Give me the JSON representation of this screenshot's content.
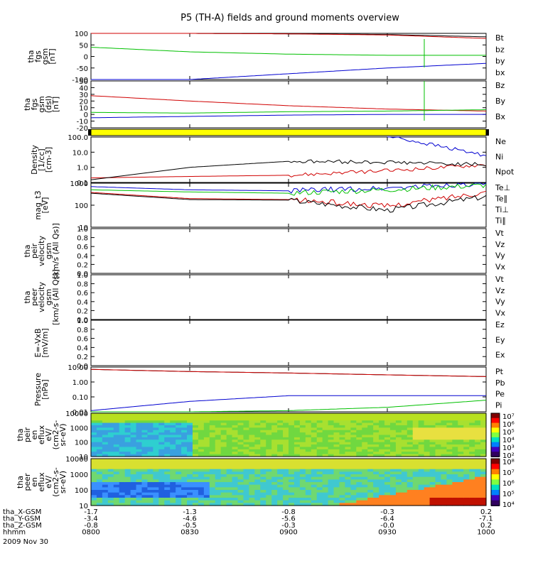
{
  "title": "P5 (TH-A) fields and ground moments overview",
  "panels": [
    {
      "id": "fgs_gsm",
      "ylabel": [
        "tha",
        "fgs",
        "gsm",
        "[nT]"
      ],
      "yticks": [
        "100",
        "50",
        "0",
        "-50",
        "-100"
      ],
      "legend": [
        {
          "t": "Bt",
          "c": "#000000"
        },
        {
          "t": "bz",
          "c": "#d00000"
        },
        {
          "t": "by",
          "c": "#00c000"
        },
        {
          "t": "bx",
          "c": "#0000d0"
        }
      ]
    },
    {
      "id": "fgs_dsl",
      "ylabel": [
        "tha",
        "fgs",
        "gsm",
        "(dsl)",
        "[nT]"
      ],
      "yticks": [
        "50",
        "40",
        "30",
        "20",
        "10",
        "0",
        "-10",
        "-20"
      ],
      "legend": [
        {
          "t": "Bz",
          "c": "#d00000"
        },
        {
          "t": "By",
          "c": "#00c000"
        },
        {
          "t": "Bx",
          "c": "#0000d0"
        }
      ]
    },
    {
      "id": "density",
      "ylabel": [
        "Density",
        "[1/cc]",
        "[cm-3]"
      ],
      "yticks": [
        "100.0",
        "10.0",
        "1.0",
        "0.1"
      ],
      "legend": [
        {
          "t": "Ne",
          "c": "#d00000"
        },
        {
          "t": "Ni",
          "c": "#000000"
        },
        {
          "t": "Npot",
          "c": "#0000d0"
        }
      ]
    },
    {
      "id": "temperature",
      "ylabel": [
        "mag_t3",
        "[eV]"
      ],
      "yticks": [
        "1000",
        "100",
        "10"
      ],
      "legend": [
        {
          "t": "Te⊥",
          "c": "#d00000"
        },
        {
          "t": "Te∥",
          "c": "#000000"
        },
        {
          "t": "Ti⊥",
          "c": "#0000d0"
        },
        {
          "t": "Ti∥",
          "c": "#00c000"
        }
      ]
    },
    {
      "id": "peir_vel",
      "ylabel": [
        "tha",
        "peir",
        "velocity",
        "gsm",
        "[km/s (All Qs)]"
      ],
      "yticks": [
        "1.0",
        "0.8",
        "0.6",
        "0.4",
        "0.2",
        "0.0"
      ],
      "legend": [
        {
          "t": "Vt",
          "c": "#000000"
        },
        {
          "t": "Vz",
          "c": "#d00000"
        },
        {
          "t": "Vy",
          "c": "#00c000"
        },
        {
          "t": "Vx",
          "c": "#0000d0"
        }
      ]
    },
    {
      "id": "peer_vel",
      "ylabel": [
        "tha",
        "peer",
        "velocity",
        "gsm",
        "[km/s (All Qs)]"
      ],
      "yticks": [
        "1.0",
        "0.8",
        "0.6",
        "0.4",
        "0.2",
        "0.0"
      ],
      "legend": [
        {
          "t": "Vt",
          "c": "#000000"
        },
        {
          "t": "Vz",
          "c": "#d00000"
        },
        {
          "t": "Vy",
          "c": "#00c000"
        },
        {
          "t": "Vx",
          "c": "#0000d0"
        }
      ]
    },
    {
      "id": "efield",
      "ylabel": [
        "E=-VxB",
        "[mV/m]"
      ],
      "yticks": [
        "1.0",
        "0.8",
        "0.6",
        "0.4",
        "0.2",
        "0.0"
      ],
      "legend": [
        {
          "t": "Ez",
          "c": "#d00000"
        },
        {
          "t": "Ey",
          "c": "#00c000"
        },
        {
          "t": "Ex",
          "c": "#0000d0"
        }
      ]
    },
    {
      "id": "pressure",
      "ylabel": [
        "Pressure",
        "[nPa]"
      ],
      "yticks": [
        "10.00",
        "1.00",
        "0.10",
        "0.01"
      ],
      "legend": [
        {
          "t": "Pt",
          "c": "#000000"
        },
        {
          "t": "Pb",
          "c": "#d00000"
        },
        {
          "t": "Pe",
          "c": "#00c000"
        },
        {
          "t": "Pi",
          "c": "#0000d0"
        }
      ]
    },
    {
      "id": "peir_en",
      "ylabel": [
        "tha",
        "peir",
        "en",
        "eflux",
        "eV/",
        "(cm2-s-",
        "sr-eV)"
      ],
      "yticks": [
        "10000",
        "1000",
        "100",
        "10"
      ],
      "cbar": [
        "10⁷",
        "10⁶",
        "10⁵",
        "10⁴",
        "10³",
        "10²"
      ]
    },
    {
      "id": "peer_en",
      "ylabel": [
        "tha",
        "peer",
        "en",
        "eflux",
        "eV/",
        "(cm2-s-",
        "sr-eV)"
      ],
      "yticks": [
        "10000",
        "1000",
        "100",
        "10"
      ],
      "cbar": [
        "10⁸",
        "10⁷",
        "10⁶",
        "10⁵",
        "10⁴"
      ]
    }
  ],
  "xaxis": {
    "rows": [
      {
        "label": "tha_X-GSM",
        "vals": [
          "-1.7",
          "-1.3",
          "-0.8",
          "-0.3",
          "0.2"
        ]
      },
      {
        "label": "tha_Y-GSM",
        "vals": [
          "-3.4",
          "-4.6",
          "-5.6",
          "-6.4",
          "-7.1"
        ]
      },
      {
        "label": "tha_Z-GSM",
        "vals": [
          "-0.8",
          "-0.5",
          "-0.3",
          "-0.0",
          "0.2"
        ]
      },
      {
        "label": "hhmm",
        "vals": [
          "0800",
          "0830",
          "0900",
          "0930",
          "1000"
        ]
      }
    ],
    "date": "2009 Nov 30"
  },
  "chart_data": {
    "type": "line",
    "x": [
      "0800",
      "0830",
      "0900",
      "0930",
      "1000"
    ],
    "time_range": [
      "0800",
      "1000"
    ],
    "panels": [
      {
        "name": "fgs gsm",
        "unit": "nT",
        "ylim": [
          -100,
          100
        ],
        "series": [
          {
            "name": "Bt",
            "values": [
              102,
              100,
              98,
              95,
              85
            ]
          },
          {
            "name": "bz",
            "values": [
              102,
              100,
              98,
              93,
              78
            ]
          },
          {
            "name": "by",
            "values": [
              40,
              20,
              10,
              5,
              5
            ]
          },
          {
            "name": "bx",
            "values": [
              -110,
              -100,
              -75,
              -50,
              -30
            ]
          }
        ]
      },
      {
        "name": "fgs dsl",
        "unit": "nT",
        "ylim": [
          -20,
          50
        ],
        "series": [
          {
            "name": "Bz",
            "values": [
              28,
              20,
              13,
              8,
              5
            ]
          },
          {
            "name": "By",
            "values": [
              3,
              2,
              4,
              5,
              7
            ]
          },
          {
            "name": "Bx",
            "values": [
              -5,
              -3,
              -1,
              0,
              0
            ]
          }
        ]
      },
      {
        "name": "Density",
        "unit": "cm-3",
        "ylim": [
          0.1,
          100
        ],
        "scale": "log",
        "series": [
          {
            "name": "Ne",
            "values": [
              0.2,
              0.25,
              0.3,
              0.6,
              1.5
            ]
          },
          {
            "name": "Ni",
            "values": [
              0.15,
              1.0,
              2.5,
              2.2,
              1.5
            ]
          },
          {
            "name": "Npot",
            "values": [
              null,
              null,
              null,
              120,
              6
            ]
          }
        ]
      },
      {
        "name": "Temperature",
        "unit": "eV",
        "ylim": [
          10,
          1000
        ],
        "scale": "log",
        "series": [
          {
            "name": "Te⊥",
            "values": [
              380,
              200,
              180,
              90,
              400
            ]
          },
          {
            "name": "Te∥",
            "values": [
              350,
              180,
              170,
              60,
              250
            ]
          },
          {
            "name": "Ti⊥",
            "values": [
              700,
              500,
              450,
              600,
              1000
            ]
          },
          {
            "name": "Ti∥",
            "values": [
              500,
              400,
              350,
              500,
              800
            ]
          }
        ]
      },
      {
        "name": "Pressure",
        "unit": "nPa",
        "ylim": [
          0.01,
          10
        ],
        "scale": "log",
        "series": [
          {
            "name": "Pt",
            "values": [
              7,
              5,
              4,
              3,
              2.3
            ]
          },
          {
            "name": "Pb",
            "values": [
              7,
              5,
              4,
              3,
              2.3
            ]
          },
          {
            "name": "Pe",
            "values": [
              0.01,
              0.01,
              0.012,
              0.02,
              0.06
            ]
          },
          {
            "name": "Pi",
            "values": [
              0.012,
              0.05,
              0.12,
              0.12,
              0.12
            ]
          }
        ]
      }
    ]
  }
}
